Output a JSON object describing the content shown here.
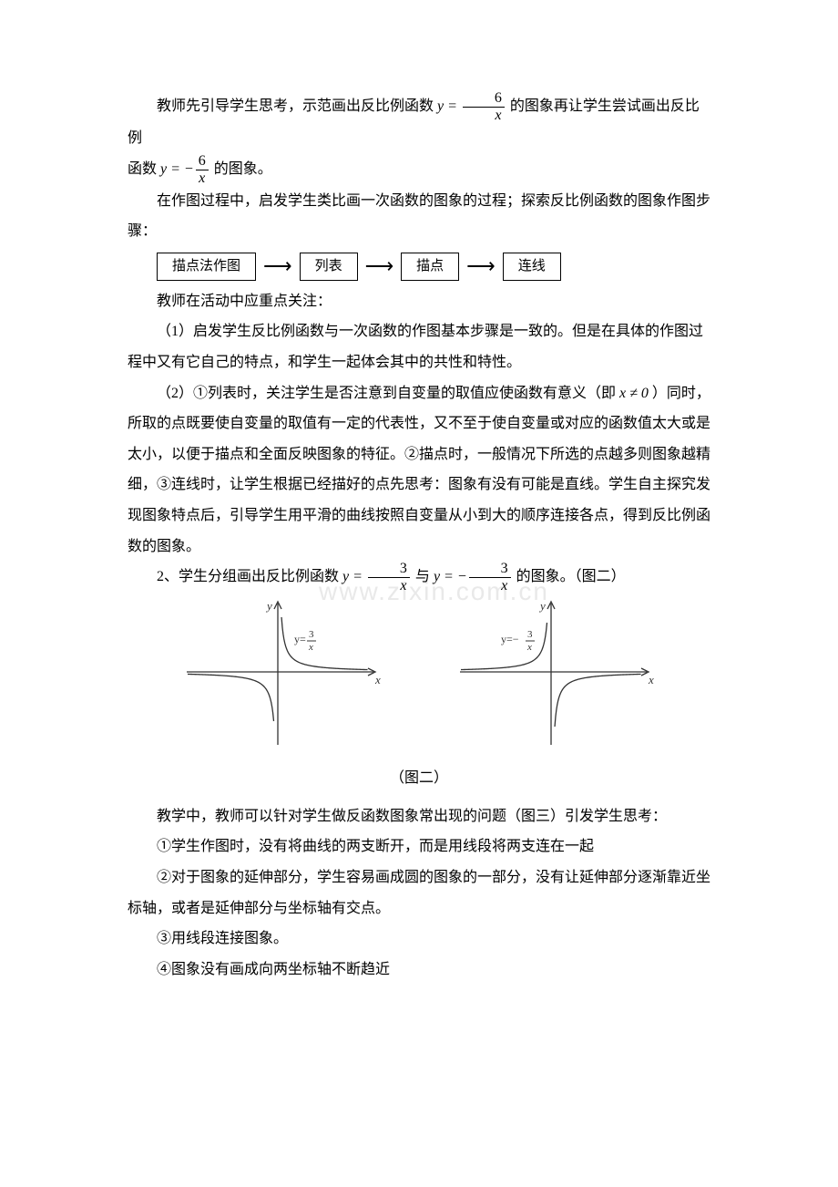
{
  "p1_a": "教师先引导学生思考，示范画出反比例函数 ",
  "p1_eq_lhs": "y = ",
  "p1_eq_num": "6",
  "p1_eq_den": "x",
  "p1_b": " 的图象再让学生尝试画出反比例",
  "p2_a": "函数 ",
  "p2_eq_lhs": "y = −",
  "p2_eq_num": "6",
  "p2_eq_den": "x",
  "p2_b": " 的图象。",
  "p3": "在作图过程中，启发学生类比画一次函数的图象的过程；探索反比例函数的图象作图步骤：",
  "flow": {
    "a": "描点法作图",
    "b": "列表",
    "c": "描点",
    "d": "连线"
  },
  "p4": "教师在活动中应重点关注：",
  "p5": "（1）启发学生反比例函数与一次函数的作图基本步骤是一致的。但是在具体的作图过程中又有它自己的特点，和学生一起体会其中的共性和特性。",
  "p6_a": "（2）①列表时，关注学生是否注意到自变量的取值应使函数有意义（即 ",
  "p6_eq": "x ≠ 0",
  "p6_b": "）同时，所取的点既要使自变量的取值有一定的代表性，又不至于使自变量或对应的函数值太大或是太小，以便于描点和全面反映图象的特征。②描点时，一般情况下所选的点越多则图象越精细，③连线时，让学生根据已经描好的点先思考：图象有没有可能是直线。学生自主探究发现图象特点后，引导学生用平滑的曲线按照自变量从小到大的顺序连接各点，得到反比例函数的图象。",
  "p7_a": "2、学生分组画出反比例函数 ",
  "p7_eq1_lhs": "y = ",
  "p7_eq1_num": "3",
  "p7_eq1_den": "x",
  "p7_mid": " 与 ",
  "p7_eq2_lhs": "y = −",
  "p7_eq2_num": "3",
  "p7_eq2_den": "x",
  "p7_b": " 的图象。（图二）",
  "caption2": "（图二）",
  "p8": "教学中，教师可以针对学生做反函数图象常出现的问题（图三）引发学生思考：",
  "p9": "①学生作图时，没有将曲线的两支断开，而是用线段将两支连在一起",
  "p10": "②对于图象的延伸部分，学生容易画成圆的图象的一部分，没有让延伸部分逐渐靠近坐标轴，或者是延伸部分与坐标轴有交点。",
  "p11": "③用线段连接图象。",
  "p12": "④图象没有画成向两坐标轴不断趋近",
  "chart1": {
    "axis_color": "#333333",
    "curve_color": "#333333",
    "bg": "#ffffff",
    "xlabel": "x",
    "ylabel": "y",
    "eqlabel": "y= 3⁄x",
    "curve_width": 1.3,
    "axis_width": 1.3,
    "label_fontsize": 13,
    "type": "hyperbola_q1_q3"
  },
  "chart2": {
    "axis_color": "#333333",
    "curve_color": "#333333",
    "bg": "#ffffff",
    "xlabel": "x",
    "ylabel": "y",
    "eqlabel": "y=− 3⁄x",
    "curve_width": 1.3,
    "axis_width": 1.3,
    "label_fontsize": 13,
    "type": "hyperbola_q2_q4"
  },
  "watermark": "www.zixin.com.cn"
}
